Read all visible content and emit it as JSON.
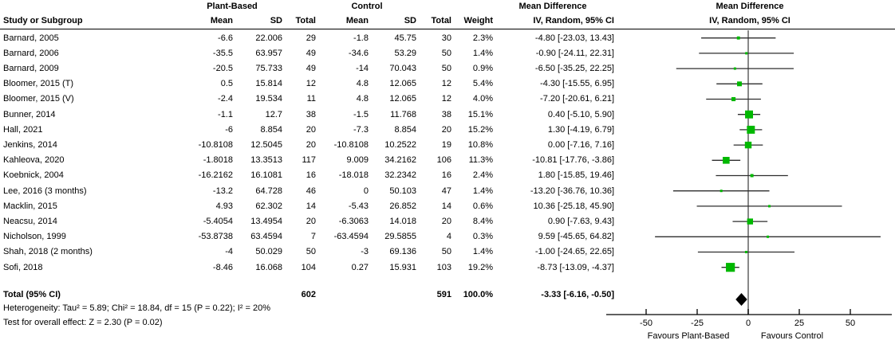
{
  "header": {
    "study": "Study or Subgroup",
    "group_pb": "Plant-Based",
    "group_ctrl": "Control",
    "mean": "Mean",
    "sd": "SD",
    "total": "Total",
    "weight": "Weight",
    "effect_line1": "Mean Difference",
    "effect_line2": "IV, Random, 95% CI",
    "plot_line1": "Mean Difference",
    "plot_line2": "IV, Random, 95% CI"
  },
  "studies": [
    {
      "label": "Barnard, 2005",
      "pb_mean": "-6.6",
      "pb_sd": "22.006",
      "pb_total": "29",
      "c_mean": "-1.8",
      "c_sd": "45.75",
      "c_total": "30",
      "weight": "2.3%",
      "ci": "-4.80 [-23.03, 13.43]"
    },
    {
      "label": "Barnard, 2006",
      "pb_mean": "-35.5",
      "pb_sd": "63.957",
      "pb_total": "49",
      "c_mean": "-34.6",
      "c_sd": "53.29",
      "c_total": "50",
      "weight": "1.4%",
      "ci": "-0.90 [-24.11, 22.31]"
    },
    {
      "label": "Barnard, 2009",
      "pb_mean": "-20.5",
      "pb_sd": "75.733",
      "pb_total": "49",
      "c_mean": "-14",
      "c_sd": "70.043",
      "c_total": "50",
      "weight": "0.9%",
      "ci": "-6.50 [-35.25, 22.25]"
    },
    {
      "label": "Bloomer, 2015 (T)",
      "pb_mean": "0.5",
      "pb_sd": "15.814",
      "pb_total": "12",
      "c_mean": "4.8",
      "c_sd": "12.065",
      "c_total": "12",
      "weight": "5.4%",
      "ci": "-4.30 [-15.55, 6.95]"
    },
    {
      "label": "Bloomer, 2015 (V)",
      "pb_mean": "-2.4",
      "pb_sd": "19.534",
      "pb_total": "11",
      "c_mean": "4.8",
      "c_sd": "12.065",
      "c_total": "12",
      "weight": "4.0%",
      "ci": "-7.20 [-20.61, 6.21]"
    },
    {
      "label": "Bunner, 2014",
      "pb_mean": "-1.1",
      "pb_sd": "12.7",
      "pb_total": "38",
      "c_mean": "-1.5",
      "c_sd": "11.768",
      "c_total": "38",
      "weight": "15.1%",
      "ci": "0.40 [-5.10, 5.90]"
    },
    {
      "label": "Hall, 2021",
      "pb_mean": "-6",
      "pb_sd": "8.854",
      "pb_total": "20",
      "c_mean": "-7.3",
      "c_sd": "8.854",
      "c_total": "20",
      "weight": "15.2%",
      "ci": "1.30 [-4.19, 6.79]"
    },
    {
      "label": "Jenkins, 2014",
      "pb_mean": "-10.8108",
      "pb_sd": "12.5045",
      "pb_total": "20",
      "c_mean": "-10.8108",
      "c_sd": "10.2522",
      "c_total": "19",
      "weight": "10.8%",
      "ci": "0.00 [-7.16, 7.16]"
    },
    {
      "label": "Kahleova, 2020",
      "pb_mean": "-1.8018",
      "pb_sd": "13.3513",
      "pb_total": "117",
      "c_mean": "9.009",
      "c_sd": "34.2162",
      "c_total": "106",
      "weight": "11.3%",
      "ci": "-10.81 [-17.76, -3.86]"
    },
    {
      "label": "Koebnick, 2004",
      "pb_mean": "-16.2162",
      "pb_sd": "16.1081",
      "pb_total": "16",
      "c_mean": "-18.018",
      "c_sd": "32.2342",
      "c_total": "16",
      "weight": "2.4%",
      "ci": "1.80 [-15.85, 19.46]"
    },
    {
      "label": "Lee, 2016 (3 months)",
      "pb_mean": "-13.2",
      "pb_sd": "64.728",
      "pb_total": "46",
      "c_mean": "0",
      "c_sd": "50.103",
      "c_total": "47",
      "weight": "1.4%",
      "ci": "-13.20 [-36.76, 10.36]"
    },
    {
      "label": "Macklin, 2015",
      "pb_mean": "4.93",
      "pb_sd": "62.302",
      "pb_total": "14",
      "c_mean": "-5.43",
      "c_sd": "26.852",
      "c_total": "14",
      "weight": "0.6%",
      "ci": "10.36 [-25.18, 45.90]"
    },
    {
      "label": "Neacsu, 2014",
      "pb_mean": "-5.4054",
      "pb_sd": "13.4954",
      "pb_total": "20",
      "c_mean": "-6.3063",
      "c_sd": "14.018",
      "c_total": "20",
      "weight": "8.4%",
      "ci": "0.90 [-7.63, 9.43]"
    },
    {
      "label": "Nicholson, 1999",
      "pb_mean": "-53.8738",
      "pb_sd": "63.4594",
      "pb_total": "7",
      "c_mean": "-63.4594",
      "c_sd": "29.5855",
      "c_total": "4",
      "weight": "0.3%",
      "ci": "9.59 [-45.65, 64.82]"
    },
    {
      "label": "Shah, 2018 (2 months)",
      "pb_mean": "-4",
      "pb_sd": "50.029",
      "pb_total": "50",
      "c_mean": "-3",
      "c_sd": "69.136",
      "c_total": "50",
      "weight": "1.4%",
      "ci": "-1.00 [-24.65, 22.65]"
    },
    {
      "label": "Sofi, 2018",
      "pb_mean": "-8.46",
      "pb_sd": "16.068",
      "pb_total": "104",
      "c_mean": "0.27",
      "c_sd": "15.931",
      "c_total": "103",
      "weight": "19.2%",
      "ci": "-8.73 [-13.09, -4.37]"
    }
  ],
  "total": {
    "label": "Total (95% CI)",
    "pb_total": "602",
    "c_total": "591",
    "weight": "100.0%",
    "ci": "-3.33 [-6.16, -0.50]"
  },
  "footer": {
    "heterogeneity": "Heterogeneity: Tau² = 5.89; Chi² = 18.84, df = 15 (P = 0.22); I² = 20%",
    "test": "Test for overall effect: Z = 2.30 (P = 0.02)"
  },
  "chart_data": {
    "type": "forest",
    "effect_measure": "Mean Difference",
    "model": "IV, Random, 95% CI",
    "points": [
      {
        "study": "Barnard, 2005",
        "md": -4.8,
        "lo": -23.03,
        "hi": 13.43,
        "weight_pct": 2.3
      },
      {
        "study": "Barnard, 2006",
        "md": -0.9,
        "lo": -24.11,
        "hi": 22.31,
        "weight_pct": 1.4
      },
      {
        "study": "Barnard, 2009",
        "md": -6.5,
        "lo": -35.25,
        "hi": 22.25,
        "weight_pct": 0.9
      },
      {
        "study": "Bloomer, 2015 (T)",
        "md": -4.3,
        "lo": -15.55,
        "hi": 6.95,
        "weight_pct": 5.4
      },
      {
        "study": "Bloomer, 2015 (V)",
        "md": -7.2,
        "lo": -20.61,
        "hi": 6.21,
        "weight_pct": 4.0
      },
      {
        "study": "Bunner, 2014",
        "md": 0.4,
        "lo": -5.1,
        "hi": 5.9,
        "weight_pct": 15.1
      },
      {
        "study": "Hall, 2021",
        "md": 1.3,
        "lo": -4.19,
        "hi": 6.79,
        "weight_pct": 15.2
      },
      {
        "study": "Jenkins, 2014",
        "md": 0.0,
        "lo": -7.16,
        "hi": 7.16,
        "weight_pct": 10.8
      },
      {
        "study": "Kahleova, 2020",
        "md": -10.81,
        "lo": -17.76,
        "hi": -3.86,
        "weight_pct": 11.3
      },
      {
        "study": "Koebnick, 2004",
        "md": 1.8,
        "lo": -15.85,
        "hi": 19.46,
        "weight_pct": 2.4
      },
      {
        "study": "Lee, 2016 (3 months)",
        "md": -13.2,
        "lo": -36.76,
        "hi": 10.36,
        "weight_pct": 1.4
      },
      {
        "study": "Macklin, 2015",
        "md": 10.36,
        "lo": -25.18,
        "hi": 45.9,
        "weight_pct": 0.6
      },
      {
        "study": "Neacsu, 2014",
        "md": 0.9,
        "lo": -7.63,
        "hi": 9.43,
        "weight_pct": 8.4
      },
      {
        "study": "Nicholson, 1999",
        "md": 9.59,
        "lo": -45.65,
        "hi": 64.82,
        "weight_pct": 0.3
      },
      {
        "study": "Shah, 2018 (2 months)",
        "md": -1.0,
        "lo": -24.65,
        "hi": 22.65,
        "weight_pct": 1.4
      },
      {
        "study": "Sofi, 2018",
        "md": -8.73,
        "lo": -13.09,
        "hi": -4.37,
        "weight_pct": 19.2
      }
    ],
    "summary": {
      "label": "Total (95% CI)",
      "md": -3.33,
      "lo": -6.16,
      "hi": -0.5,
      "weight_pct": 100.0
    },
    "x_axis": {
      "tick_values": [
        -50,
        -25,
        0,
        25,
        50
      ],
      "tick_labels": [
        "-50",
        "-25",
        "0",
        "25",
        "50"
      ],
      "zero_line": 0
    },
    "favours_left": "Favours Plant-Based",
    "favours_right": "Favours Control",
    "colors": {
      "marker": "#00b800",
      "ci_line": "#2e2e2e",
      "diamond": "#000000",
      "zero_line": "#6b6b6b",
      "axis": "#000000"
    }
  }
}
